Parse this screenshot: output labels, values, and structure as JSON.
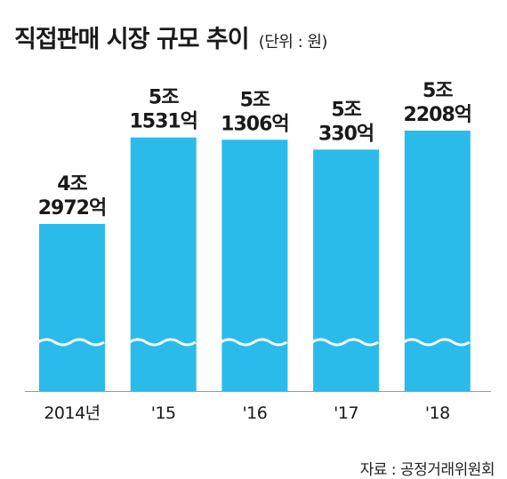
{
  "title": "직접판매 시장 규모 추이",
  "unit": "(단위 : 원)",
  "source": "자료 : 공정거래위원회",
  "colors": {
    "bar": "#2bbbea",
    "background": "#ffffff",
    "text": "#1a1a1a"
  },
  "chart_data": {
    "type": "bar",
    "categories": [
      "2014년",
      "'15",
      "'16",
      "'17",
      "'18"
    ],
    "values": [
      42972,
      51531,
      51306,
      50330,
      52208
    ],
    "value_unit": "억원",
    "data_labels": [
      [
        "4조",
        "2972억"
      ],
      [
        "5조",
        "1531억"
      ],
      [
        "5조",
        "1306억"
      ],
      [
        "5조",
        "330억"
      ],
      [
        "5조",
        "2208억"
      ]
    ],
    "axis_break": true,
    "grid": false,
    "legend": "none"
  }
}
